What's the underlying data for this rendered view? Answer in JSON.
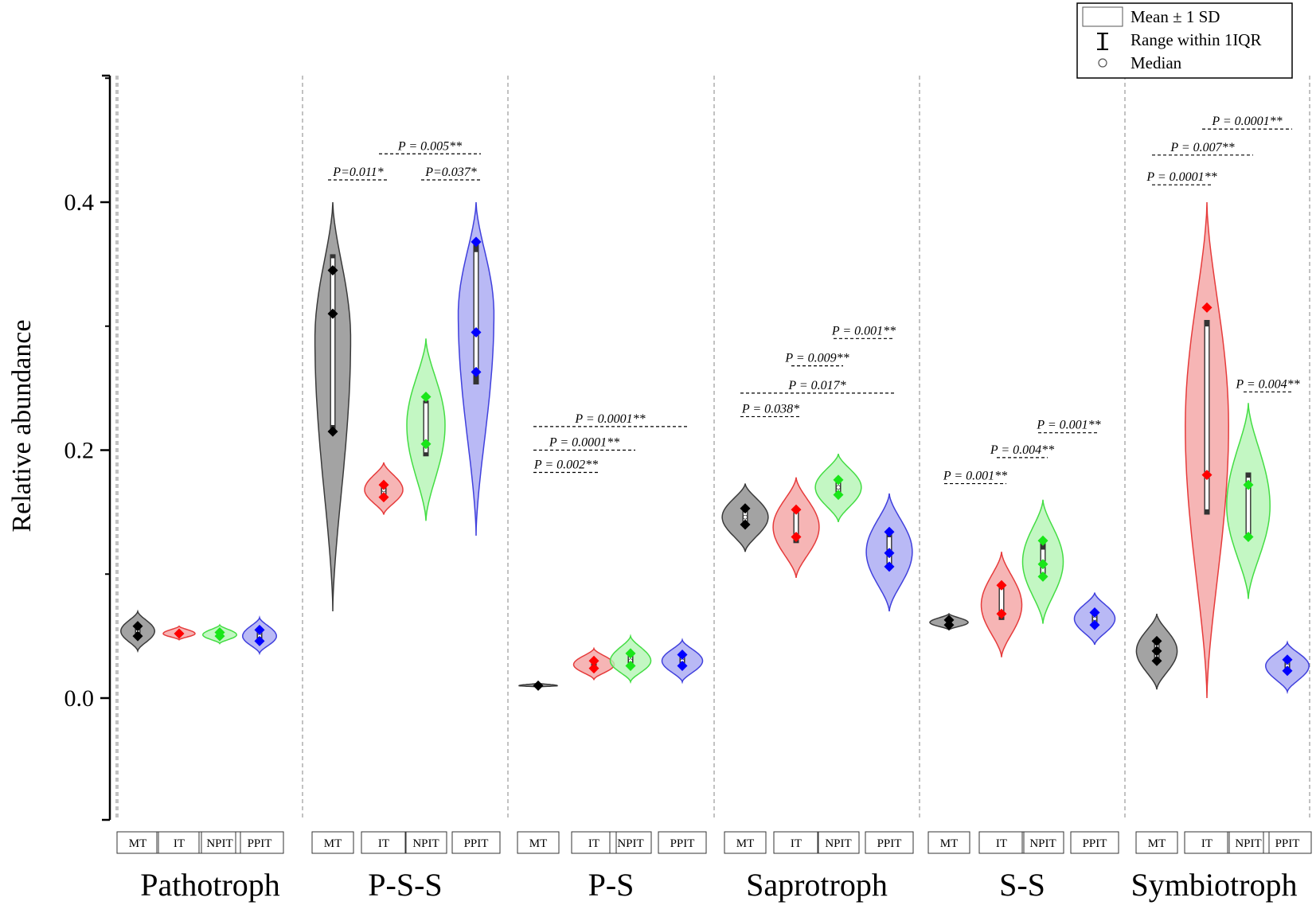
{
  "chart_data": {
    "type": "violin",
    "ylabel": "Relative abundance",
    "ylim": [
      -0.1,
      0.5
    ],
    "yticks": [
      0.0,
      0.2,
      0.4
    ],
    "ytick_labels": [
      "0.0",
      "0.2",
      "0.4"
    ],
    "categories": [
      "MT",
      "IT",
      "NPIT",
      "PPIT"
    ],
    "colors": {
      "MT": {
        "fill": "#8c8c8c",
        "stroke": "#3a3a3a",
        "dot": "#000000"
      },
      "IT": {
        "fill": "#f4a3a3",
        "stroke": "#e63b3b",
        "dot": "#ff0000"
      },
      "NPIT": {
        "fill": "#b4f5b4",
        "stroke": "#44dd44",
        "dot": "#19e619"
      },
      "PPIT": {
        "fill": "#a8a8f2",
        "stroke": "#4040dd",
        "dot": "#0000ff"
      }
    },
    "legend": {
      "position": "top-right",
      "items": [
        "Mean ± 1 SD",
        "Range within 1IQR",
        "Median"
      ]
    },
    "groups": [
      {
        "name": "Pathotroph",
        "series": [
          {
            "cat": "MT",
            "min": 0.038,
            "max": 0.07,
            "mean": 0.054,
            "sd_lo": 0.05,
            "sd_hi": 0.058,
            "iqr_lo": 0.05,
            "iqr_hi": 0.06,
            "median": 0.054,
            "points": [
              0.05,
              0.058
            ],
            "width": 0.85
          },
          {
            "cat": "IT",
            "min": 0.047,
            "max": 0.058,
            "mean": 0.052,
            "sd_lo": 0.051,
            "sd_hi": 0.054,
            "iqr_lo": 0.051,
            "iqr_hi": 0.054,
            "median": 0.052,
            "points": [
              0.052
            ],
            "width": 0.8
          },
          {
            "cat": "NPIT",
            "min": 0.044,
            "max": 0.059,
            "mean": 0.051,
            "sd_lo": 0.049,
            "sd_hi": 0.054,
            "iqr_lo": 0.049,
            "iqr_hi": 0.054,
            "median": 0.051,
            "points": [
              0.05,
              0.053
            ],
            "width": 0.85
          },
          {
            "cat": "PPIT",
            "min": 0.036,
            "max": 0.065,
            "mean": 0.05,
            "sd_lo": 0.047,
            "sd_hi": 0.055,
            "iqr_lo": 0.046,
            "iqr_hi": 0.055,
            "median": 0.05,
            "points": [
              0.046,
              0.055
            ],
            "width": 0.85
          }
        ],
        "pvalues": []
      },
      {
        "name": "P-S-S",
        "series": [
          {
            "cat": "MT",
            "min": 0.07,
            "max": 0.4,
            "mean": 0.29,
            "sd_lo": 0.22,
            "sd_hi": 0.355,
            "iqr_lo": 0.215,
            "iqr_hi": 0.358,
            "median": 0.31,
            "points": [
              0.215,
              0.31,
              0.345
            ],
            "width": 0.7
          },
          {
            "cat": "IT",
            "min": 0.148,
            "max": 0.19,
            "mean": 0.168,
            "sd_lo": 0.162,
            "sd_hi": 0.172,
            "iqr_lo": 0.16,
            "iqr_hi": 0.174,
            "median": 0.168,
            "points": [
              0.162,
              0.172
            ],
            "width": 0.75
          },
          {
            "cat": "NPIT",
            "min": 0.143,
            "max": 0.29,
            "mean": 0.22,
            "sd_lo": 0.198,
            "sd_hi": 0.238,
            "iqr_lo": 0.195,
            "iqr_hi": 0.24,
            "median": 0.205,
            "points": [
              0.205,
              0.243
            ],
            "width": 0.75
          },
          {
            "cat": "PPIT",
            "min": 0.131,
            "max": 0.4,
            "mean": 0.31,
            "sd_lo": 0.26,
            "sd_hi": 0.36,
            "iqr_lo": 0.253,
            "iqr_hi": 0.368,
            "median": 0.295,
            "points": [
              0.263,
              0.295,
              0.368
            ],
            "width": 0.7
          }
        ],
        "pvalues": [
          {
            "text": "P=0.011*",
            "from": "MT",
            "to": "IT",
            "y": 0.418
          },
          {
            "text": "P = 0.005**",
            "from": "IT",
            "to": "PPIT",
            "y": 0.439
          },
          {
            "text": "P=0.037*",
            "from": "NPIT",
            "to": "PPIT",
            "y": 0.418
          }
        ]
      },
      {
        "name": "P-S",
        "series": [
          {
            "cat": "MT",
            "min": 0.009,
            "max": 0.012,
            "mean": 0.01,
            "sd_lo": 0.0095,
            "sd_hi": 0.0105,
            "iqr_lo": 0.0095,
            "iqr_hi": 0.0105,
            "median": 0.01,
            "points": [
              0.01
            ],
            "width": 0.8
          },
          {
            "cat": "IT",
            "min": 0.015,
            "max": 0.04,
            "mean": 0.027,
            "sd_lo": 0.023,
            "sd_hi": 0.031,
            "iqr_lo": 0.023,
            "iqr_hi": 0.031,
            "median": 0.027,
            "points": [
              0.024,
              0.03
            ],
            "width": 0.85
          },
          {
            "cat": "NPIT",
            "min": 0.013,
            "max": 0.05,
            "mean": 0.03,
            "sd_lo": 0.025,
            "sd_hi": 0.036,
            "iqr_lo": 0.025,
            "iqr_hi": 0.036,
            "median": 0.03,
            "points": [
              0.026,
              0.036
            ],
            "width": 0.85
          },
          {
            "cat": "PPIT",
            "min": 0.013,
            "max": 0.047,
            "mean": 0.03,
            "sd_lo": 0.025,
            "sd_hi": 0.035,
            "iqr_lo": 0.025,
            "iqr_hi": 0.035,
            "median": 0.03,
            "points": [
              0.026,
              0.035
            ],
            "width": 0.85
          }
        ],
        "pvalues": [
          {
            "text": "P = 0.002**",
            "from": "MT",
            "to": "IT",
            "y": 0.182
          },
          {
            "text": "P = 0.0001**",
            "from": "MT",
            "to": "NPIT",
            "y": 0.2
          },
          {
            "text": "P = 0.0001**",
            "from": "MT",
            "to": "PPIT",
            "y": 0.219
          }
        ]
      },
      {
        "name": "Saprotroph",
        "series": [
          {
            "cat": "MT",
            "min": 0.118,
            "max": 0.173,
            "mean": 0.146,
            "sd_lo": 0.14,
            "sd_hi": 0.153,
            "iqr_lo": 0.138,
            "iqr_hi": 0.155,
            "median": 0.146,
            "points": [
              0.14,
              0.153
            ],
            "width": 0.85
          },
          {
            "cat": "IT",
            "min": 0.097,
            "max": 0.178,
            "mean": 0.138,
            "sd_lo": 0.128,
            "sd_hi": 0.15,
            "iqr_lo": 0.125,
            "iqr_hi": 0.152,
            "median": 0.13,
            "points": [
              0.13,
              0.152
            ],
            "width": 0.85
          },
          {
            "cat": "NPIT",
            "min": 0.142,
            "max": 0.197,
            "mean": 0.17,
            "sd_lo": 0.164,
            "sd_hi": 0.176,
            "iqr_lo": 0.163,
            "iqr_hi": 0.178,
            "median": 0.17,
            "points": [
              0.164,
              0.176
            ],
            "width": 0.85
          },
          {
            "cat": "PPIT",
            "min": 0.07,
            "max": 0.165,
            "mean": 0.118,
            "sd_lo": 0.108,
            "sd_hi": 0.13,
            "iqr_lo": 0.106,
            "iqr_hi": 0.134,
            "median": 0.117,
            "points": [
              0.106,
              0.117,
              0.134
            ],
            "width": 0.85
          }
        ],
        "pvalues": [
          {
            "text": "P = 0.038*",
            "from": "MT",
            "to": "IT",
            "y": 0.227
          },
          {
            "text": "P = 0.017*",
            "from": "MT",
            "to": "PPIT",
            "y": 0.246
          },
          {
            "text": "P = 0.009**",
            "from": "IT",
            "to": "NPIT",
            "y": 0.268
          },
          {
            "text": "P = 0.001**",
            "from": "NPIT",
            "to": "PPIT",
            "y": 0.29
          }
        ]
      },
      {
        "name": "S-S",
        "series": [
          {
            "cat": "MT",
            "min": 0.055,
            "max": 0.068,
            "mean": 0.061,
            "sd_lo": 0.059,
            "sd_hi": 0.063,
            "iqr_lo": 0.058,
            "iqr_hi": 0.064,
            "median": 0.061,
            "points": [
              0.059,
              0.063
            ],
            "width": 0.8
          },
          {
            "cat": "IT",
            "min": 0.033,
            "max": 0.118,
            "mean": 0.075,
            "sd_lo": 0.067,
            "sd_hi": 0.088,
            "iqr_lo": 0.063,
            "iqr_hi": 0.09,
            "median": 0.068,
            "points": [
              0.068,
              0.091
            ],
            "width": 0.85
          },
          {
            "cat": "NPIT",
            "min": 0.06,
            "max": 0.16,
            "mean": 0.11,
            "sd_lo": 0.1,
            "sd_hi": 0.12,
            "iqr_lo": 0.098,
            "iqr_hi": 0.127,
            "median": 0.108,
            "points": [
              0.098,
              0.108,
              0.127
            ],
            "width": 0.85
          },
          {
            "cat": "PPIT",
            "min": 0.043,
            "max": 0.085,
            "mean": 0.064,
            "sd_lo": 0.059,
            "sd_hi": 0.069,
            "iqr_lo": 0.058,
            "iqr_hi": 0.07,
            "median": 0.064,
            "points": [
              0.059,
              0.069
            ],
            "width": 0.85
          }
        ],
        "pvalues": [
          {
            "text": "P = 0.001**",
            "from": "MT",
            "to": "IT",
            "y": 0.173
          },
          {
            "text": "P = 0.004**",
            "from": "IT",
            "to": "NPIT",
            "y": 0.194
          },
          {
            "text": "P = 0.001**",
            "from": "NPIT",
            "to": "PPIT",
            "y": 0.214
          }
        ]
      },
      {
        "name": "Symbiotroph",
        "series": [
          {
            "cat": "MT",
            "min": 0.007,
            "max": 0.068,
            "mean": 0.038,
            "sd_lo": 0.03,
            "sd_hi": 0.046,
            "iqr_lo": 0.028,
            "iqr_hi": 0.048,
            "median": 0.038,
            "points": [
              0.03,
              0.038,
              0.046
            ],
            "width": 0.8
          },
          {
            "cat": "IT",
            "min": 0.0,
            "max": 0.4,
            "mean": 0.22,
            "sd_lo": 0.152,
            "sd_hi": 0.3,
            "iqr_lo": 0.148,
            "iqr_hi": 0.305,
            "median": 0.18,
            "points": [
              0.18,
              0.315
            ],
            "width": 0.85
          },
          {
            "cat": "NPIT",
            "min": 0.08,
            "max": 0.238,
            "mean": 0.155,
            "sd_lo": 0.13,
            "sd_hi": 0.178,
            "iqr_lo": 0.128,
            "iqr_hi": 0.182,
            "median": 0.172,
            "points": [
              0.13,
              0.172
            ],
            "width": 0.85
          },
          {
            "cat": "PPIT",
            "min": 0.005,
            "max": 0.045,
            "mean": 0.026,
            "sd_lo": 0.022,
            "sd_hi": 0.031,
            "iqr_lo": 0.021,
            "iqr_hi": 0.032,
            "median": 0.026,
            "points": [
              0.022,
              0.031
            ],
            "width": 0.85
          }
        ],
        "pvalues": [
          {
            "text": "P = 0.0001**",
            "from": "MT",
            "to": "IT",
            "y": 0.414
          },
          {
            "text": "P = 0.007**",
            "from": "MT",
            "to": "NPIT",
            "y": 0.438
          },
          {
            "text": "P = 0.0001**",
            "from": "IT",
            "to": "PPIT",
            "y": 0.459
          },
          {
            "text": "P = 0.004**",
            "from": "NPIT",
            "to": "PPIT",
            "y": 0.247
          }
        ]
      }
    ]
  }
}
